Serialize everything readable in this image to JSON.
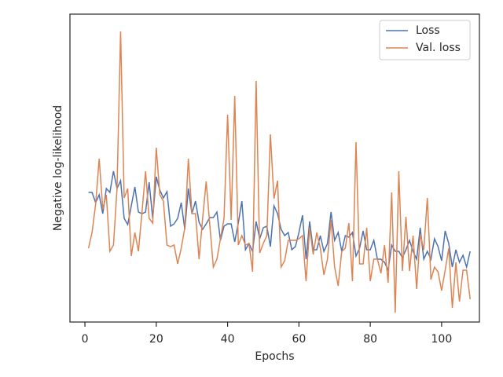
{
  "chart_data": {
    "type": "line",
    "xlabel": "Epochs",
    "ylabel": "Negative log-likelihood",
    "x": [
      1,
      2,
      3,
      4,
      5,
      6,
      7,
      8,
      9,
      10,
      11,
      12,
      13,
      14,
      15,
      16,
      17,
      18,
      19,
      20,
      21,
      22,
      23,
      24,
      25,
      26,
      27,
      28,
      29,
      30,
      31,
      32,
      33,
      34,
      35,
      36,
      37,
      38,
      39,
      40,
      41,
      42,
      43,
      44,
      45,
      46,
      47,
      48,
      49,
      50,
      51,
      52,
      53,
      54,
      55,
      56,
      57,
      58,
      59,
      60,
      61,
      62,
      63,
      64,
      65,
      66,
      67,
      68,
      69,
      70,
      71,
      72,
      73,
      74,
      75,
      76,
      77,
      78,
      79,
      80,
      81,
      82,
      83,
      84,
      85,
      86,
      87,
      88,
      89,
      90,
      91,
      92,
      93,
      94,
      95,
      96,
      97,
      98,
      99,
      100,
      101,
      102,
      103,
      104,
      105,
      106,
      107,
      108
    ],
    "series": [
      {
        "name": "Loss",
        "color": "#4c72b0",
        "values": [
          165,
          165,
          152,
          162,
          138,
          170,
          165,
          192,
          170,
          180,
          132,
          124,
          148,
          172,
          140,
          138,
          140,
          178,
          132,
          185,
          168,
          158,
          166,
          122,
          125,
          132,
          152,
          118,
          170,
          138,
          154,
          127,
          118,
          125,
          133,
          133,
          140,
          104,
          122,
          125,
          125,
          102,
          126,
          154,
          92,
          100,
          90,
          128,
          106,
          120,
          122,
          96,
          148,
          138,
          118,
          110,
          114,
          92,
          96,
          114,
          136,
          80,
          128,
          92,
          92,
          110,
          90,
          100,
          140,
          104,
          114,
          90,
          110,
          108,
          114,
          84,
          94,
          116,
          92,
          92,
          104,
          80,
          80,
          76,
          66,
          98,
          90,
          90,
          82,
          92,
          104,
          90,
          80,
          120,
          80,
          90,
          80,
          106,
          96,
          78,
          116,
          100,
          70,
          92,
          76,
          85,
          70,
          90
        ]
      },
      {
        "name": "Val. loss",
        "color": "#dd8452",
        "values": [
          94,
          114,
          150,
          208,
          144,
          162,
          90,
          98,
          170,
          370,
          158,
          170,
          84,
          114,
          90,
          140,
          192,
          132,
          126,
          222,
          162,
          154,
          98,
          96,
          98,
          74,
          94,
          120,
          208,
          138,
          138,
          80,
          132,
          179,
          124,
          70,
          80,
          106,
          132,
          264,
          130,
          288,
          98,
          110,
          98,
          100,
          64,
          307,
          88,
          100,
          110,
          239,
          157,
          180,
          70,
          78,
          104,
          104,
          104,
          106,
          110,
          52,
          120,
          86,
          114,
          94,
          60,
          80,
          130,
          70,
          46,
          90,
          94,
          126,
          52,
          229,
          74,
          74,
          120,
          52,
          80,
          80,
          62,
          98,
          50,
          165,
          12,
          192,
          65,
          134,
          65,
          110,
          42,
          112,
          92,
          158,
          54,
          70,
          64,
          40,
          66,
          94,
          18,
          76,
          26,
          66,
          66,
          29
        ]
      }
    ],
    "xlim": [
      -4.2,
      110.6
    ],
    "xticks": [
      0,
      20,
      40,
      60,
      80,
      100
    ],
    "ylim": [
      0,
      392
    ],
    "legend": "upper right"
  }
}
